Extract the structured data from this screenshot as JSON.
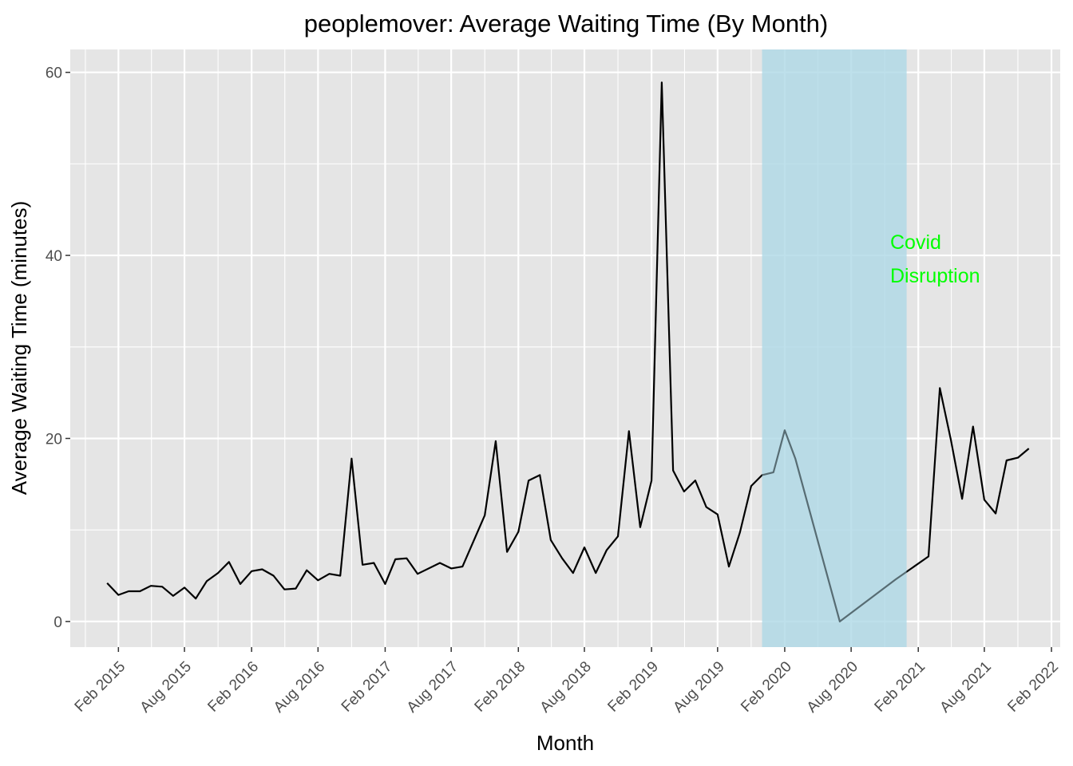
{
  "chart_data": {
    "type": "line",
    "title": "peoplemover: Average Waiting Time (By Month)",
    "xlabel": "Month",
    "ylabel": "Average Waiting Time (minutes)",
    "ylim": [
      -2.8,
      62.5
    ],
    "yticks": [
      0,
      20,
      40,
      60
    ],
    "xlim": [
      "2014-09-22",
      "2022-02-25"
    ],
    "xticks": [
      {
        "date": "2015-02-01",
        "label": "Feb 2015"
      },
      {
        "date": "2015-08-01",
        "label": "Aug 2015"
      },
      {
        "date": "2016-02-01",
        "label": "Feb 2016"
      },
      {
        "date": "2016-08-01",
        "label": "Aug 2016"
      },
      {
        "date": "2017-02-01",
        "label": "Feb 2017"
      },
      {
        "date": "2017-08-01",
        "label": "Aug 2017"
      },
      {
        "date": "2018-02-01",
        "label": "Feb 2018"
      },
      {
        "date": "2018-08-01",
        "label": "Aug 2018"
      },
      {
        "date": "2019-02-01",
        "label": "Feb 2019"
      },
      {
        "date": "2019-08-01",
        "label": "Aug 2019"
      },
      {
        "date": "2020-02-01",
        "label": "Feb 2020"
      },
      {
        "date": "2020-08-01",
        "label": "Aug 2020"
      },
      {
        "date": "2021-02-01",
        "label": "Feb 2021"
      },
      {
        "date": "2021-08-01",
        "label": "Aug 2021"
      },
      {
        "date": "2022-02-01",
        "label": "Feb 2022"
      }
    ],
    "grid": true,
    "legend": "none",
    "line_color": "#000000",
    "panel_color": "#e5e5e5",
    "highlight": {
      "start": "2019-12-01",
      "end": "2020-12-31",
      "color": "#add8e6",
      "annotation": [
        "Covid",
        "Disruption"
      ],
      "annotation_color": "#00ff00"
    },
    "series": [
      {
        "points": [
          [
            "2015-01-01",
            4.2
          ],
          [
            "2015-02-01",
            2.9
          ],
          [
            "2015-03-01",
            3.3
          ],
          [
            "2015-04-01",
            3.3
          ],
          [
            "2015-05-01",
            3.9
          ],
          [
            "2015-06-01",
            3.8
          ],
          [
            "2015-07-01",
            2.8
          ],
          [
            "2015-08-01",
            3.7
          ],
          [
            "2015-09-01",
            2.5
          ],
          [
            "2015-10-01",
            4.4
          ],
          [
            "2015-11-01",
            5.3
          ],
          [
            "2015-12-01",
            6.5
          ],
          [
            "2016-01-01",
            4.1
          ],
          [
            "2016-02-01",
            5.5
          ],
          [
            "2016-03-01",
            5.7
          ],
          [
            "2016-04-01",
            5.0
          ],
          [
            "2016-05-01",
            3.5
          ],
          [
            "2016-06-01",
            3.6
          ],
          [
            "2016-07-01",
            5.6
          ],
          [
            "2016-08-01",
            4.5
          ],
          [
            "2016-09-01",
            5.2
          ],
          [
            "2016-10-01",
            5.0
          ],
          [
            "2016-11-01",
            17.8
          ],
          [
            "2016-12-01",
            6.2
          ],
          [
            "2017-01-01",
            6.4
          ],
          [
            "2017-02-01",
            4.1
          ],
          [
            "2017-03-01",
            6.8
          ],
          [
            "2017-04-01",
            6.9
          ],
          [
            "2017-05-01",
            5.2
          ],
          [
            "2017-07-01",
            6.4
          ],
          [
            "2017-08-01",
            5.8
          ],
          [
            "2017-09-01",
            6.0
          ],
          [
            "2017-11-01",
            11.6
          ],
          [
            "2017-12-01",
            19.7
          ],
          [
            "2018-01-01",
            7.6
          ],
          [
            "2018-02-01",
            9.8
          ],
          [
            "2018-03-01",
            15.4
          ],
          [
            "2018-04-01",
            16.0
          ],
          [
            "2018-05-01",
            8.9
          ],
          [
            "2018-06-01",
            6.9
          ],
          [
            "2018-07-01",
            5.3
          ],
          [
            "2018-08-01",
            8.1
          ],
          [
            "2018-09-01",
            5.3
          ],
          [
            "2018-10-01",
            7.8
          ],
          [
            "2018-11-01",
            9.3
          ],
          [
            "2018-12-01",
            20.8
          ],
          [
            "2019-01-01",
            10.3
          ],
          [
            "2019-02-01",
            15.4
          ],
          [
            "2019-03-01",
            58.9
          ],
          [
            "2019-04-01",
            16.5
          ],
          [
            "2019-05-01",
            14.2
          ],
          [
            "2019-06-01",
            15.4
          ],
          [
            "2019-07-01",
            12.5
          ],
          [
            "2019-08-01",
            11.7
          ],
          [
            "2019-09-01",
            6.0
          ],
          [
            "2019-10-01",
            9.7
          ],
          [
            "2019-11-01",
            14.8
          ],
          [
            "2019-12-01",
            16.0
          ],
          [
            "2020-01-01",
            16.3
          ],
          [
            "2020-02-01",
            20.9
          ],
          [
            "2020-03-01",
            17.8
          ],
          [
            "2020-07-01",
            0.0
          ],
          [
            "2020-12-01",
            4.6
          ],
          [
            "2021-03-01",
            7.1
          ],
          [
            "2021-04-01",
            25.5
          ],
          [
            "2021-05-01",
            19.9
          ],
          [
            "2021-06-01",
            13.4
          ],
          [
            "2021-07-01",
            21.3
          ],
          [
            "2021-08-01",
            13.3
          ],
          [
            "2021-09-01",
            11.8
          ],
          [
            "2021-10-01",
            17.6
          ],
          [
            "2021-11-01",
            17.9
          ],
          [
            "2021-12-01",
            18.9
          ]
        ]
      }
    ]
  }
}
